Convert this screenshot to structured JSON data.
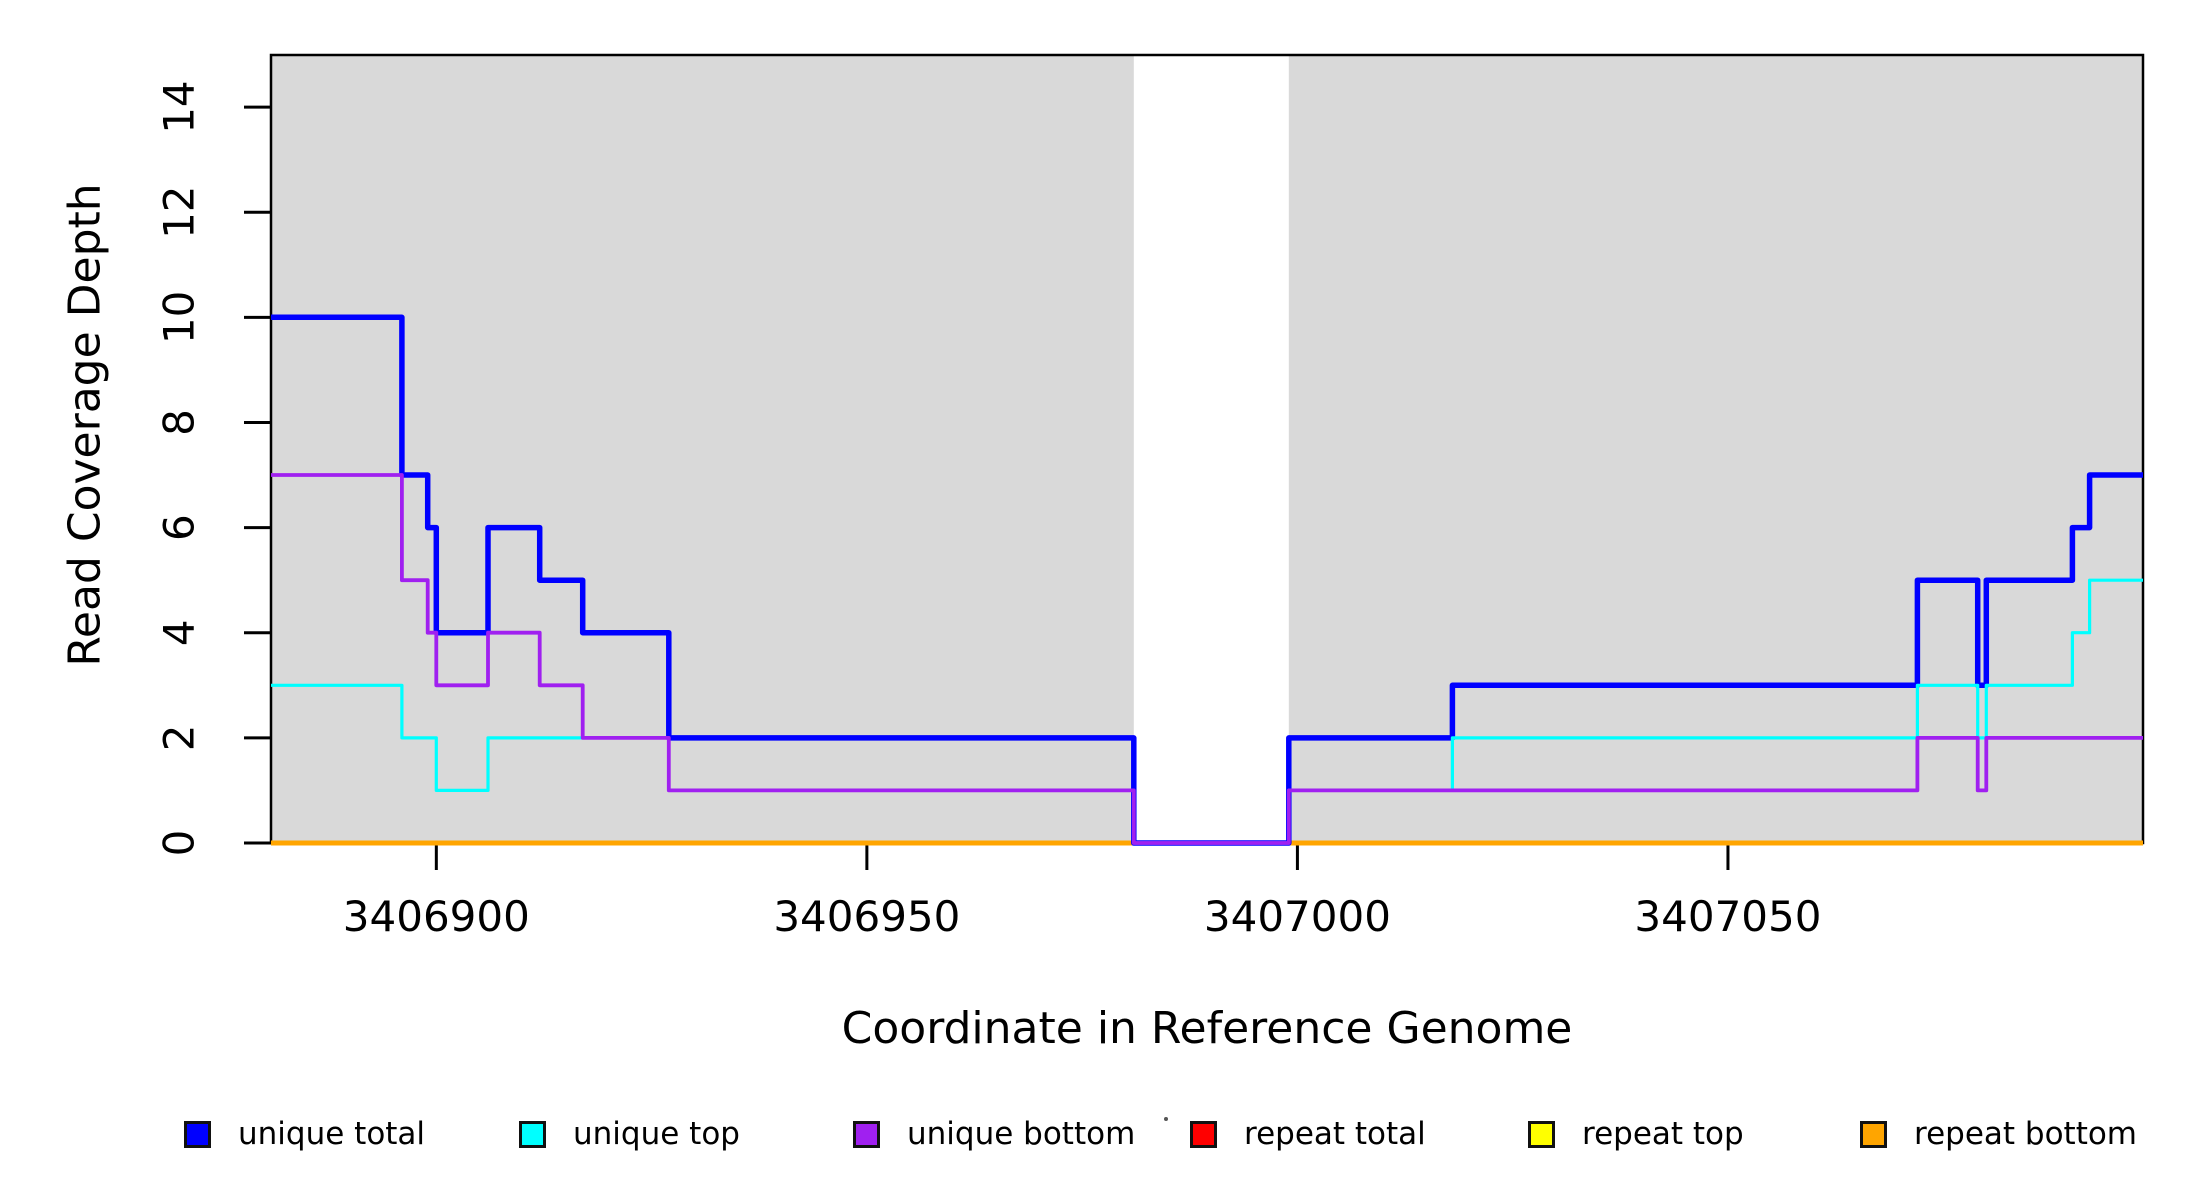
{
  "figure": {
    "x_axis_title": "Coordinate in Reference Genome",
    "y_axis_title": "Read Coverage Depth",
    "background_color": "#FFFFFF",
    "covered_region_color": "#D9D9D9",
    "axis_color": "#000000"
  },
  "chart_data": {
    "type": "line",
    "step_interpolation": true,
    "title": "",
    "xlabel": "Coordinate in Reference Genome",
    "ylabel": "Read Coverage Depth",
    "xlim": [
      3406880.8,
      3407098.2
    ],
    "ylim": [
      0,
      15
    ],
    "x_ticks": [
      3406900,
      3406950,
      3407000,
      3407050
    ],
    "y_ticks": [
      0,
      2,
      4,
      6,
      8,
      10,
      12,
      14
    ],
    "grid": false,
    "legend_position": "bottom",
    "covered_regions": [
      [
        3406880.8,
        3406981
      ],
      [
        3406999,
        3407098.2
      ]
    ],
    "uncovered_gap": [
      3406981,
      3406999
    ],
    "series": [
      {
        "name": "repeat total",
        "color": "#FF0000",
        "line_width": 3,
        "points": [
          [
            3406880.8,
            0
          ],
          [
            3407098.2,
            0
          ]
        ]
      },
      {
        "name": "repeat top",
        "color": "#FFFF00",
        "line_width": 3,
        "points": [
          [
            3406880.8,
            0
          ],
          [
            3407098.2,
            0
          ]
        ]
      },
      {
        "name": "repeat bottom",
        "color": "#FFA500",
        "line_width": 5,
        "points": [
          [
            3406880.8,
            0
          ],
          [
            3407098.2,
            0
          ]
        ]
      },
      {
        "name": "unique total",
        "color": "#0000FF",
        "line_width": 5.5,
        "points": [
          [
            3406880.8,
            10
          ],
          [
            3406896,
            10
          ],
          [
            3406896,
            7
          ],
          [
            3406899,
            7
          ],
          [
            3406899,
            6
          ],
          [
            3406900,
            6
          ],
          [
            3406900,
            4
          ],
          [
            3406906,
            4
          ],
          [
            3406906,
            6
          ],
          [
            3406912,
            6
          ],
          [
            3406912,
            5
          ],
          [
            3406917,
            5
          ],
          [
            3406917,
            4
          ],
          [
            3406927,
            4
          ],
          [
            3406927,
            2
          ],
          [
            3406981,
            2
          ],
          [
            3406981,
            0
          ],
          [
            3406999,
            0
          ],
          [
            3406999,
            2
          ],
          [
            3407018,
            2
          ],
          [
            3407018,
            3
          ],
          [
            3407072,
            3
          ],
          [
            3407072,
            5
          ],
          [
            3407079,
            5
          ],
          [
            3407079,
            3
          ],
          [
            3407080,
            3
          ],
          [
            3407080,
            5
          ],
          [
            3407090,
            5
          ],
          [
            3407090,
            6
          ],
          [
            3407092,
            6
          ],
          [
            3407092,
            7
          ],
          [
            3407098.2,
            7
          ]
        ]
      },
      {
        "name": "unique top",
        "color": "#00FFFF",
        "line_width": 3.2,
        "points": [
          [
            3406880.8,
            3
          ],
          [
            3406896,
            3
          ],
          [
            3406896,
            2
          ],
          [
            3406900,
            2
          ],
          [
            3406900,
            1
          ],
          [
            3406906,
            1
          ],
          [
            3406906,
            2
          ],
          [
            3406927,
            2
          ],
          [
            3406927,
            1
          ],
          [
            3406981,
            1
          ],
          [
            3406981,
            0
          ],
          [
            3406999,
            0
          ],
          [
            3406999,
            1
          ],
          [
            3407018,
            1
          ],
          [
            3407018,
            2
          ],
          [
            3407072,
            2
          ],
          [
            3407072,
            3
          ],
          [
            3407079,
            3
          ],
          [
            3407079,
            2
          ],
          [
            3407080,
            2
          ],
          [
            3407080,
            3
          ],
          [
            3407090,
            3
          ],
          [
            3407090,
            4
          ],
          [
            3407092,
            4
          ],
          [
            3407092,
            5
          ],
          [
            3407098.2,
            5
          ]
        ]
      },
      {
        "name": "unique bottom",
        "color": "#A020F0",
        "line_width": 3.8,
        "points": [
          [
            3406880.8,
            7
          ],
          [
            3406896,
            7
          ],
          [
            3406896,
            5
          ],
          [
            3406899,
            5
          ],
          [
            3406899,
            4
          ],
          [
            3406900,
            4
          ],
          [
            3406900,
            3
          ],
          [
            3406906,
            3
          ],
          [
            3406906,
            4
          ],
          [
            3406912,
            4
          ],
          [
            3406912,
            3
          ],
          [
            3406917,
            3
          ],
          [
            3406917,
            2
          ],
          [
            3406927,
            2
          ],
          [
            3406927,
            1
          ],
          [
            3406981,
            1
          ],
          [
            3406981,
            0
          ],
          [
            3406999,
            0
          ],
          [
            3406999,
            1
          ],
          [
            3407072,
            1
          ],
          [
            3407072,
            2
          ],
          [
            3407079,
            2
          ],
          [
            3407079,
            1
          ],
          [
            3407080,
            1
          ],
          [
            3407080,
            2
          ],
          [
            3407098.2,
            2
          ]
        ]
      }
    ],
    "legend": [
      {
        "label": "unique total",
        "color": "#0000FF"
      },
      {
        "label": "unique top",
        "color": "#00FFFF"
      },
      {
        "label": "unique bottom",
        "color": "#A020F0"
      },
      {
        "label": "repeat total",
        "color": "#FF0000"
      },
      {
        "label": "repeat top",
        "color": "#FFFF00"
      },
      {
        "label": "repeat bottom",
        "color": "#FFA500"
      }
    ]
  }
}
